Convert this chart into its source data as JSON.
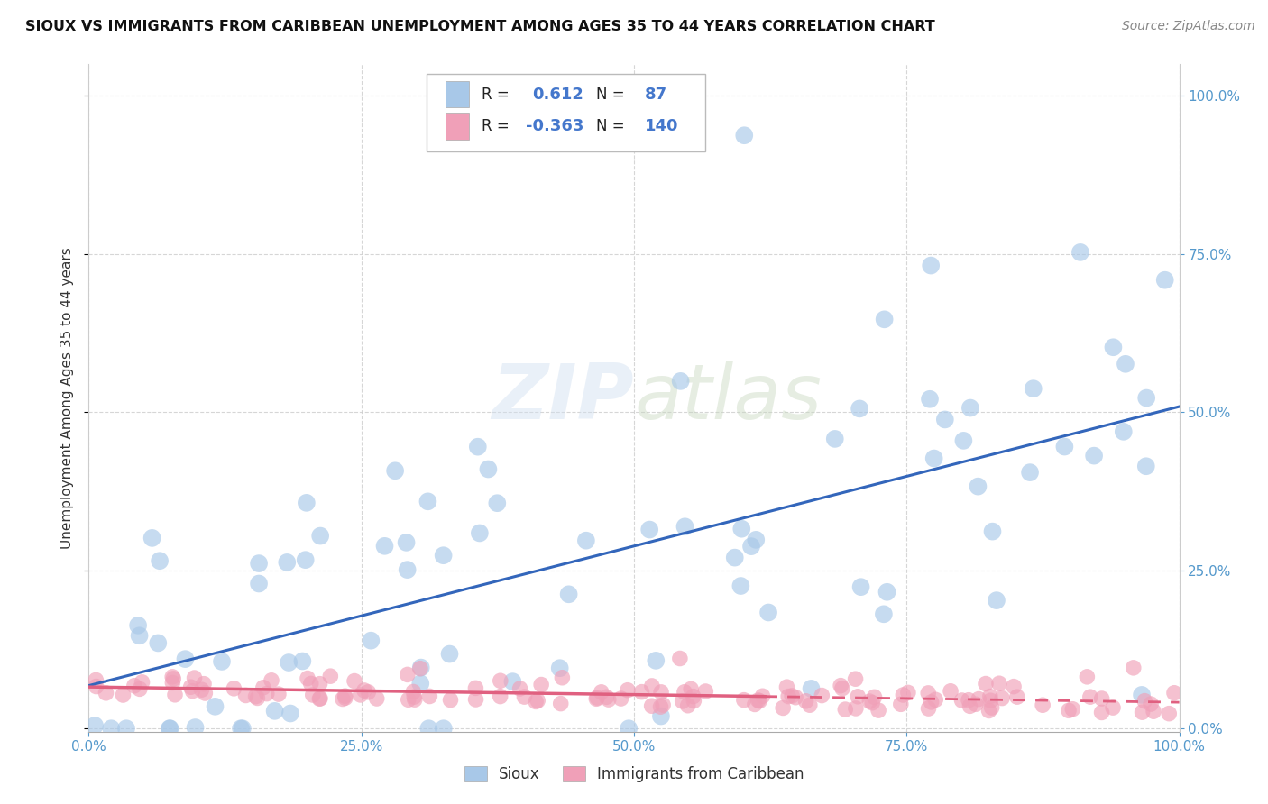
{
  "title": "SIOUX VS IMMIGRANTS FROM CARIBBEAN UNEMPLOYMENT AMONG AGES 35 TO 44 YEARS CORRELATION CHART",
  "source": "Source: ZipAtlas.com",
  "ylabel": "Unemployment Among Ages 35 to 44 years",
  "legend_labels": [
    "Sioux",
    "Immigrants from Caribbean"
  ],
  "r_sioux": 0.612,
  "n_sioux": 87,
  "r_caribbean": -0.363,
  "n_caribbean": 140,
  "sioux_color": "#A8C8E8",
  "caribbean_color": "#F0A0B8",
  "sioux_line_color": "#3366BB",
  "caribbean_line_color": "#E06080",
  "background_color": "#FFFFFF",
  "seed_sioux": 42,
  "seed_caribbean": 99
}
